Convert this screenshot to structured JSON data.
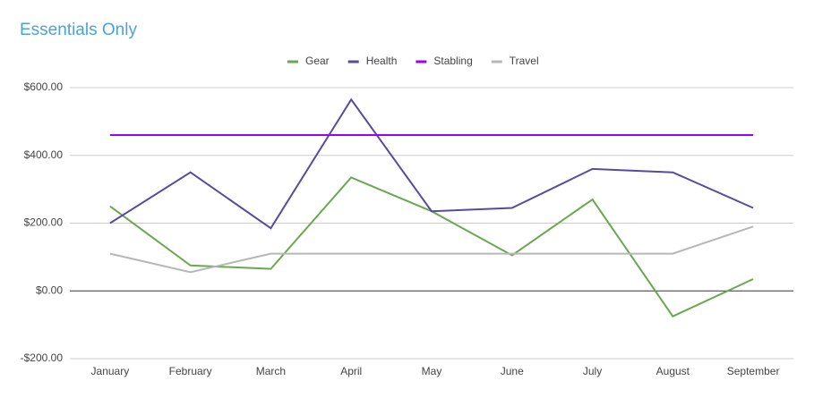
{
  "chart_data": {
    "type": "line",
    "title": "Essentials Only",
    "categories": [
      "January",
      "February",
      "March",
      "April",
      "May",
      "June",
      "July",
      "August",
      "September"
    ],
    "series": [
      {
        "name": "Gear",
        "color": "#6aa84f",
        "values": [
          250,
          75,
          65,
          335,
          235,
          105,
          270,
          -75,
          35
        ]
      },
      {
        "name": "Health",
        "color": "#574b9f",
        "values": [
          200,
          350,
          185,
          565,
          235,
          245,
          360,
          350,
          245
        ]
      },
      {
        "name": "Stabling",
        "color": "#9900ff",
        "values": [
          460,
          460,
          460,
          460,
          460,
          460,
          460,
          460,
          460
        ]
      },
      {
        "name": "Travel",
        "color": "#b7b7b7",
        "values": [
          110,
          55,
          110,
          110,
          110,
          110,
          110,
          110,
          190
        ]
      }
    ],
    "ylim": [
      -200,
      600
    ],
    "yticks": [
      {
        "value": -200,
        "label": "-$200.00"
      },
      {
        "value": 0,
        "label": "$0.00"
      },
      {
        "value": 200,
        "label": "$200.00"
      },
      {
        "value": 400,
        "label": "$400.00"
      },
      {
        "value": 600,
        "label": "$600.00"
      }
    ],
    "grid": true,
    "legend": "top"
  }
}
